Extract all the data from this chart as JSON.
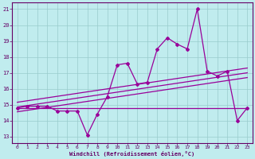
{
  "x": [
    0,
    1,
    2,
    3,
    4,
    5,
    6,
    7,
    8,
    9,
    10,
    11,
    12,
    13,
    14,
    15,
    16,
    17,
    18,
    19,
    20,
    21,
    22,
    23
  ],
  "y_main": [
    14.8,
    14.9,
    14.9,
    14.9,
    14.6,
    14.6,
    14.6,
    13.1,
    14.4,
    15.5,
    17.5,
    17.6,
    16.3,
    16.4,
    18.5,
    19.2,
    18.8,
    18.5,
    21.0,
    17.1,
    16.8,
    17.1,
    14.0,
    14.8
  ],
  "bg_color": "#c0ecee",
  "line_color": "#990099",
  "grid_color": "#99cccc",
  "ylabel_values": [
    13,
    14,
    15,
    16,
    17,
    18,
    19,
    20,
    21
  ],
  "xlabel_values": [
    0,
    1,
    2,
    3,
    4,
    5,
    6,
    7,
    8,
    9,
    10,
    11,
    12,
    13,
    14,
    15,
    16,
    17,
    18,
    19,
    20,
    21,
    22,
    23
  ],
  "xlabel": "Windchill (Refroidissement éolien,°C)",
  "ylim": [
    12.6,
    21.4
  ],
  "xlim": [
    -0.5,
    23.5
  ],
  "reg_x0": 0,
  "reg_x1": 23,
  "reg_mid_y0": 14.85,
  "reg_mid_y1": 17.0,
  "reg_upper_y0": 15.15,
  "reg_upper_y1": 17.3,
  "reg_lower_y0": 14.55,
  "reg_lower_y1": 16.7,
  "horiz_y": 14.8,
  "horiz_x0": 0,
  "horiz_x1": 23
}
